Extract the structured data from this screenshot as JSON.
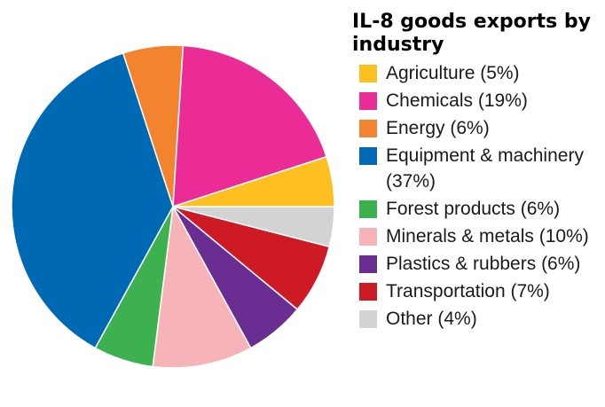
{
  "chart_data": {
    "type": "pie",
    "title": "IL-8 goods exports by industry",
    "categories": [
      "Agriculture",
      "Chemicals",
      "Energy",
      "Equipment & machinery",
      "Forest products",
      "Minerals & metals",
      "Plastics & rubbers",
      "Transportation",
      "Other"
    ],
    "values": [
      5,
      19,
      6,
      37,
      6,
      10,
      6,
      7,
      4
    ],
    "legend_labels": [
      "Agriculture (5%)",
      "Chemicals (19%)",
      "Energy (6%)",
      "Equipment & machinery (37%)",
      "Forest products (6%)",
      "Minerals & metals (10%)",
      "Plastics & rubbers (6%)",
      "Transportation (7%)",
      "Other (4%)"
    ],
    "colors": [
      "#FDC020",
      "#EC2C96",
      "#F3832E",
      "#0069B4",
      "#3DB04F",
      "#F6B4B9",
      "#6A2D91",
      "#CE1A25",
      "#D3D3D4"
    ],
    "legend_position": "right"
  }
}
